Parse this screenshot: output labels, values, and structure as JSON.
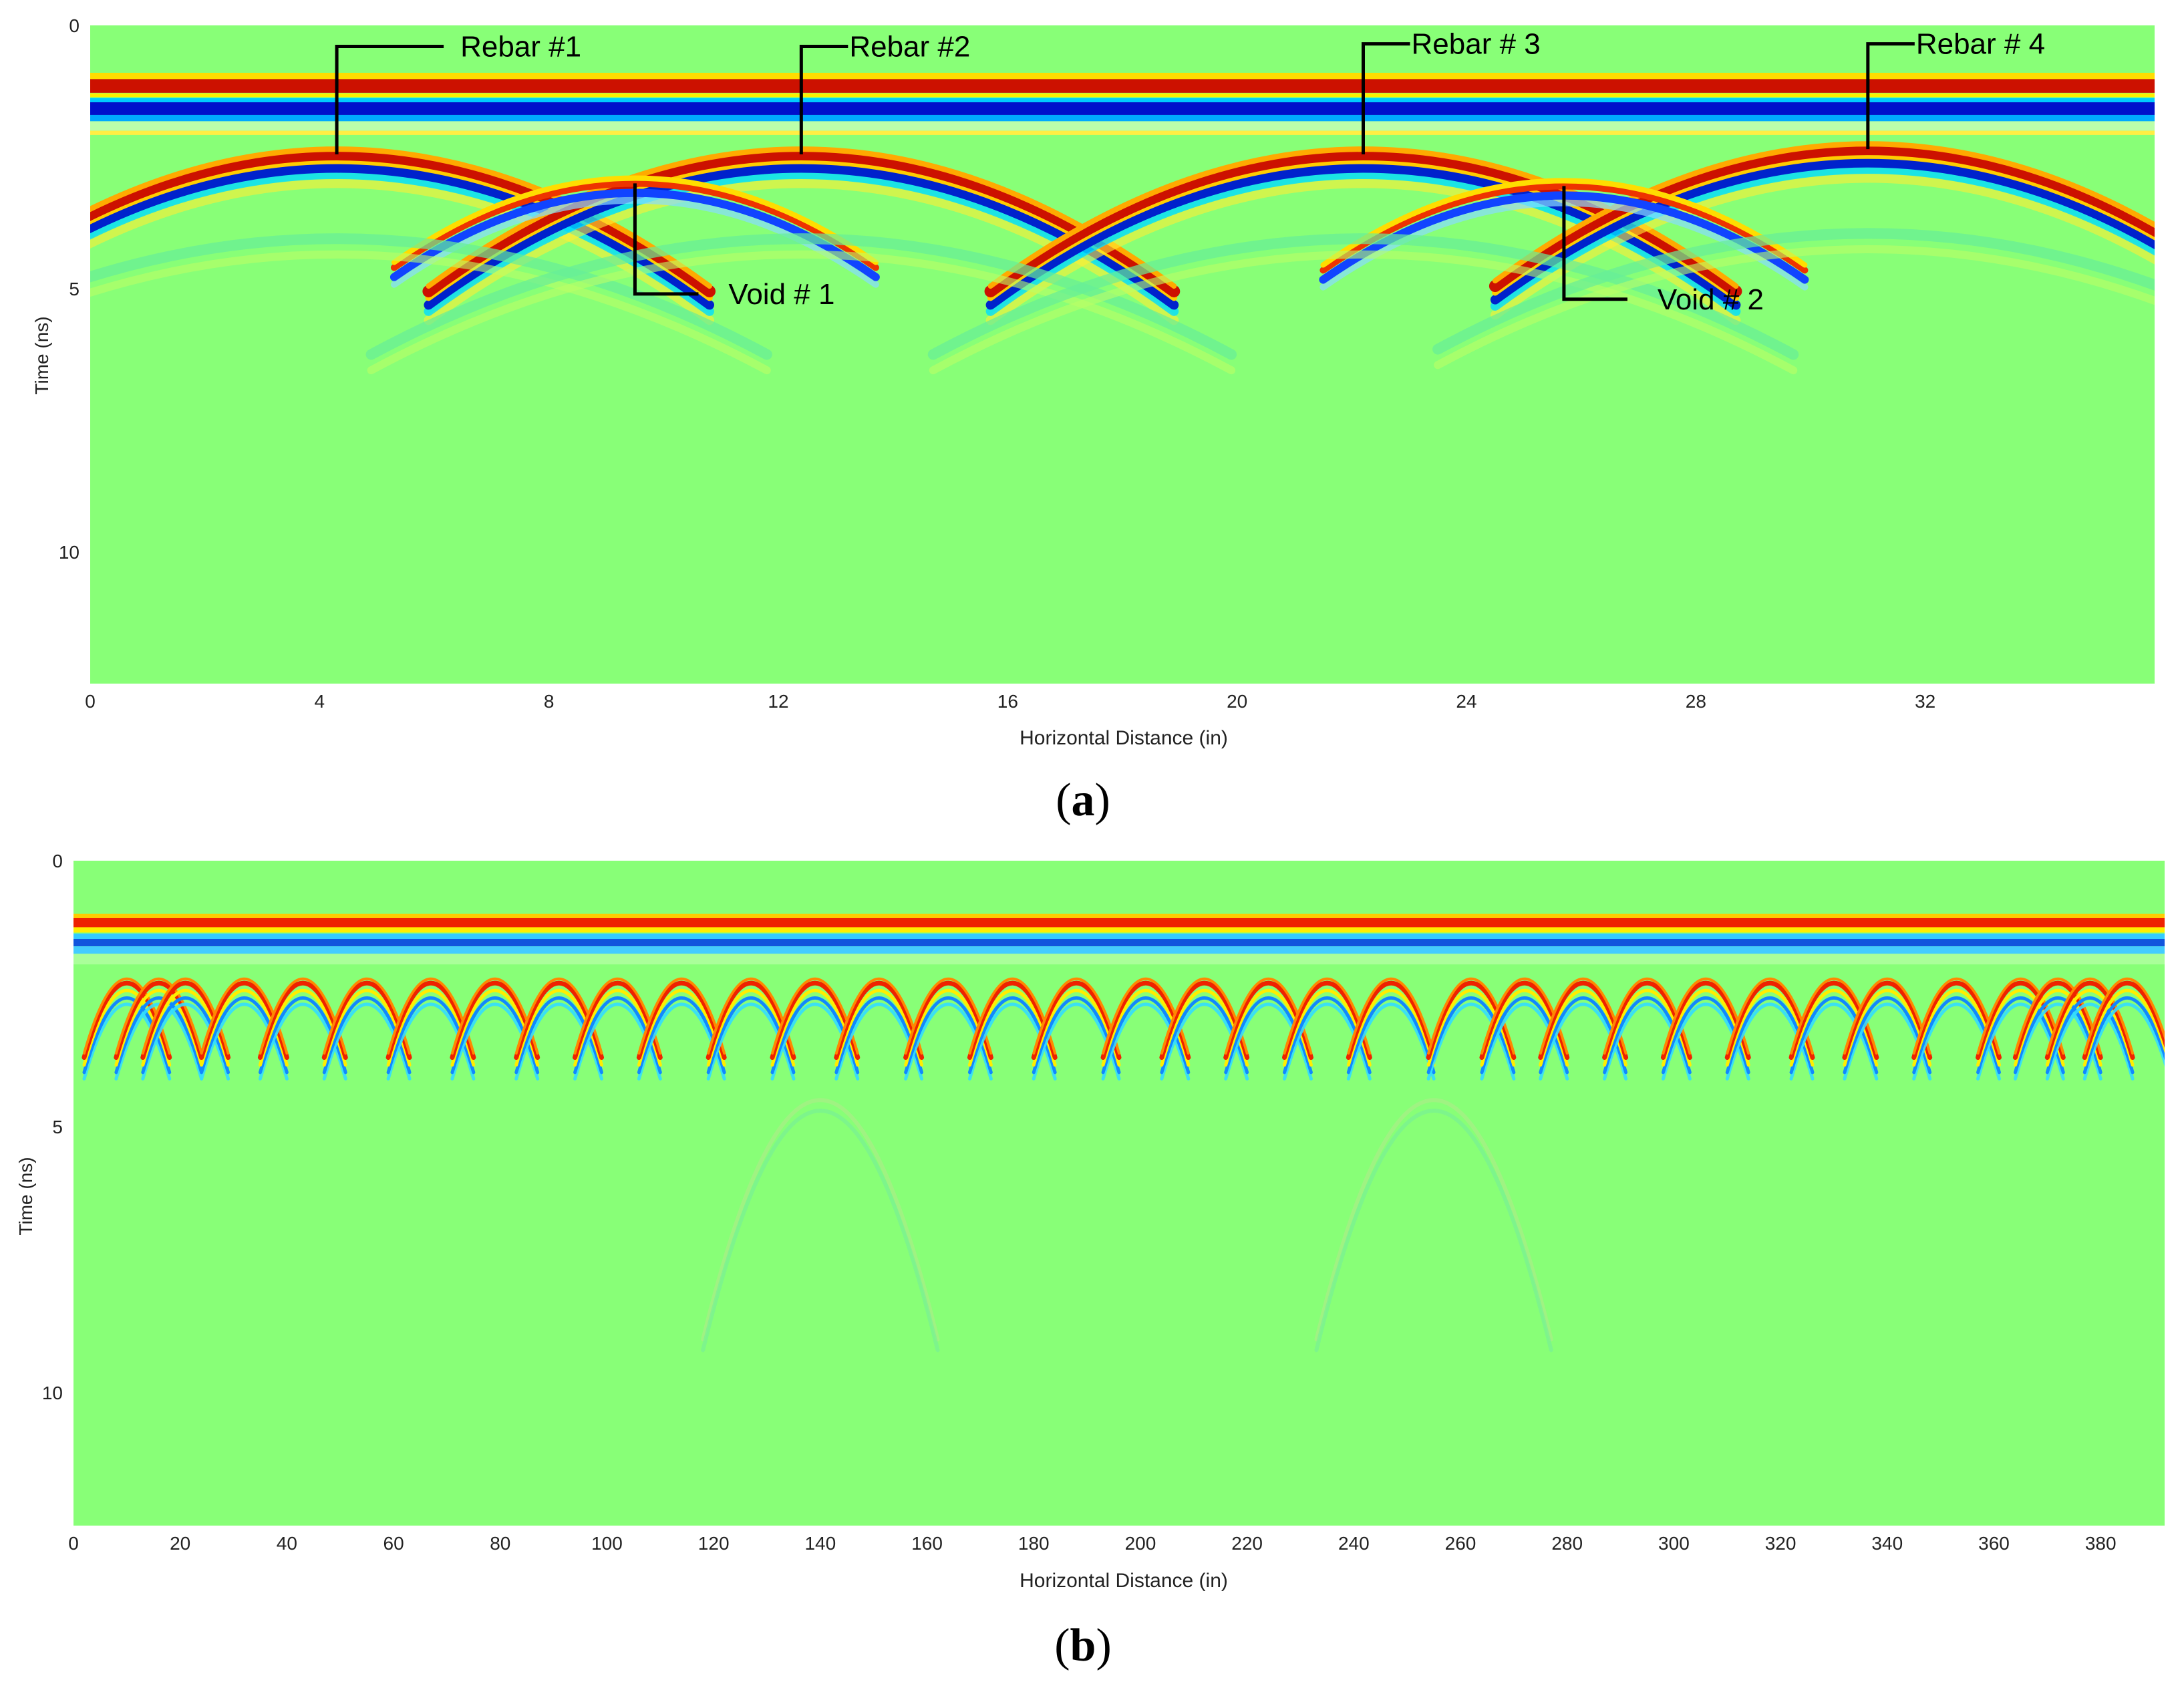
{
  "chart_data": [
    {
      "type": "heatmap",
      "panel_label": "a",
      "xlabel": "Horizontal Distance (in)",
      "ylabel": "Time (ns)",
      "xlim": [
        0,
        36
      ],
      "ylim": [
        0,
        12.5
      ],
      "y_inverted": true,
      "x_ticks": [
        0,
        4,
        8,
        12,
        16,
        20,
        24,
        28,
        32
      ],
      "y_ticks": [
        0,
        5,
        10
      ],
      "colormap": [
        "#00008b",
        "#0000ff",
        "#00aaff",
        "#00ffff",
        "#88ff77",
        "#ffff00",
        "#ff8800",
        "#ff0000",
        "#8b0000"
      ],
      "background_color": "#88ff77",
      "direct_wave_time_ns": 1.15,
      "hyperbolas": [
        {
          "x": 4.3,
          "t": 2.45,
          "kind": "rebar"
        },
        {
          "x": 12.4,
          "t": 2.45,
          "kind": "rebar"
        },
        {
          "x": 22.2,
          "t": 2.45,
          "kind": "rebar"
        },
        {
          "x": 31.0,
          "t": 2.35,
          "kind": "rebar"
        },
        {
          "x": 9.5,
          "t": 3.0,
          "kind": "void"
        },
        {
          "x": 25.7,
          "t": 3.05,
          "kind": "void"
        }
      ],
      "annotations": [
        {
          "label": "Rebar #1",
          "x": 4.3,
          "t": 2.45,
          "text_t": 0.4,
          "side": "above"
        },
        {
          "label": "Rebar #2",
          "x": 12.4,
          "t": 2.45,
          "text_t": 0.4,
          "side": "above"
        },
        {
          "label": "Rebar # 3",
          "x": 22.2,
          "t": 2.45,
          "text_t": 0.35,
          "side": "above"
        },
        {
          "label": "Rebar # 4",
          "x": 31.0,
          "t": 2.35,
          "text_t": 0.35,
          "side": "above"
        },
        {
          "label": "Void # 1",
          "x": 9.5,
          "t": 3.0,
          "text_t": 5.1,
          "side": "below"
        },
        {
          "label": "Void # 2",
          "x": 25.7,
          "t": 3.05,
          "text_t": 5.2,
          "side": "below"
        }
      ]
    },
    {
      "type": "heatmap",
      "panel_label": "b",
      "xlabel": "Horizontal Distance (in)",
      "ylabel": "Time (ns)",
      "xlim": [
        0,
        392
      ],
      "ylim": [
        0,
        12.5
      ],
      "y_inverted": true,
      "x_ticks": [
        0,
        20,
        40,
        60,
        80,
        100,
        120,
        140,
        160,
        180,
        200,
        220,
        240,
        260,
        280,
        300,
        320,
        340,
        360,
        380
      ],
      "y_ticks": [
        0,
        5,
        10
      ],
      "background_color": "#88ff77",
      "direct_wave_time_ns": 1.15,
      "rebar_apex_time_ns": 2.3,
      "rebar_positions": [
        10,
        16,
        21,
        32,
        43,
        55,
        67,
        79,
        91,
        102,
        114,
        127,
        139,
        151,
        164,
        176,
        188,
        201,
        212,
        224,
        235,
        247,
        262,
        272,
        283,
        295,
        306,
        318,
        330,
        340,
        353,
        365,
        372,
        378,
        385
      ]
    }
  ]
}
